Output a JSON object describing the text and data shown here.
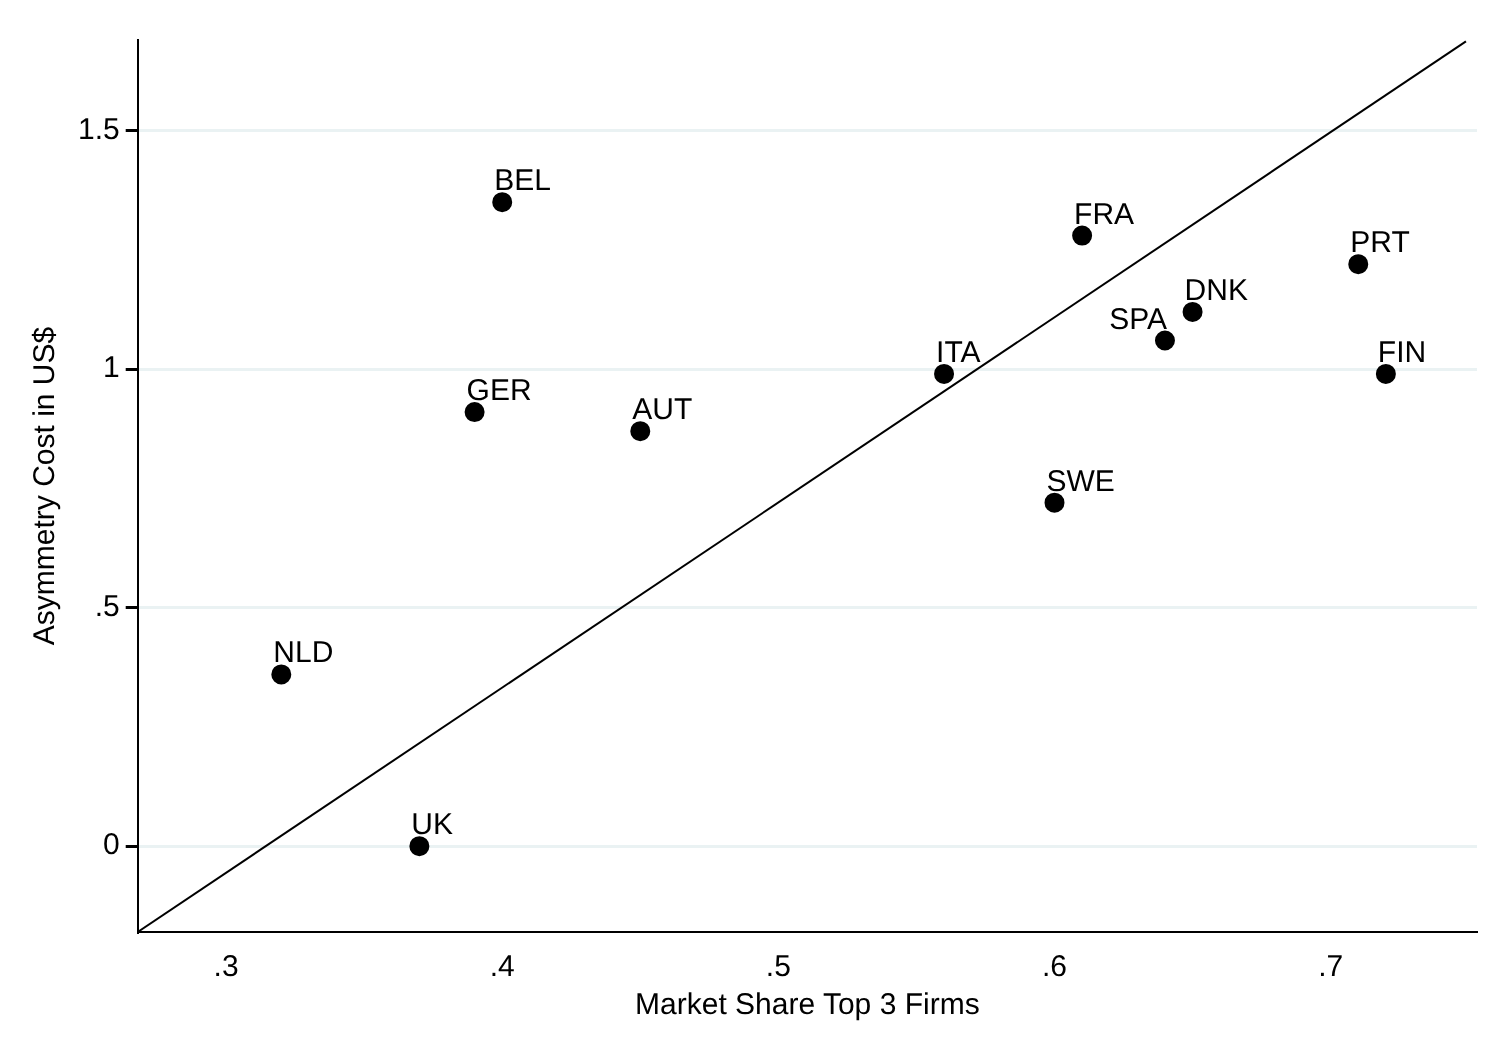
{
  "chart_data": {
    "type": "scatter",
    "xlabel": "Market Share Top 3 Firms",
    "ylabel": "Asymmetry Cost in US$",
    "xlim": [
      0.268,
      0.753
    ],
    "ylim": [
      -0.18,
      1.69
    ],
    "xticks": [
      {
        "value": 0.3,
        "label": ".3"
      },
      {
        "value": 0.4,
        "label": ".4"
      },
      {
        "value": 0.5,
        "label": ".5"
      },
      {
        "value": 0.6,
        "label": ".6"
      },
      {
        "value": 0.7,
        "label": ".7"
      }
    ],
    "yticks": [
      0,
      {
        "value": 0.5,
        "label": ".5"
      },
      1,
      {
        "value": 1.5,
        "label": "1.5"
      }
    ],
    "grid": "y",
    "legend": false,
    "marker": "circle",
    "series": [
      {
        "type": "scatter",
        "color": "#000000",
        "x": [
          0.4,
          0.39,
          0.45,
          0.32,
          0.37,
          0.56,
          0.61,
          0.64,
          0.65,
          0.71,
          0.72,
          0.6
        ],
        "values": [
          1.35,
          0.91,
          0.87,
          0.36,
          0,
          0.99,
          1.28,
          1.06,
          1.12,
          1.22,
          0.99,
          0.72
        ]
      },
      {
        "type": "line",
        "color": "#000000",
        "marker": "none",
        "x": [
          0.268,
          0.749
        ],
        "values": [
          -0.18,
          1.687
        ]
      }
    ],
    "annotations": [
      {
        "text": "BEL",
        "x": 0.4,
        "y": 1.35
      },
      {
        "text": "GER",
        "x": 0.39,
        "y": 0.91
      },
      {
        "text": "AUT",
        "x": 0.45,
        "y": 0.87
      },
      {
        "text": "NLD",
        "x": 0.32,
        "y": 0.36
      },
      {
        "text": "UK",
        "x": 0.37,
        "y": 0
      },
      {
        "text": "ITA",
        "x": 0.56,
        "y": 0.99
      },
      {
        "text": "FRA",
        "x": 0.61,
        "y": 1.28
      },
      {
        "text": "SPA",
        "x": 0.64,
        "y": 1.06
      },
      {
        "text": "DNK",
        "x": 0.65,
        "y": 1.12
      },
      {
        "text": "PRT",
        "x": 0.71,
        "y": 1.22
      },
      {
        "text": "FIN",
        "x": 0.72,
        "y": 0.99
      },
      {
        "text": "SWE",
        "x": 0.6,
        "y": 0.72
      }
    ]
  }
}
